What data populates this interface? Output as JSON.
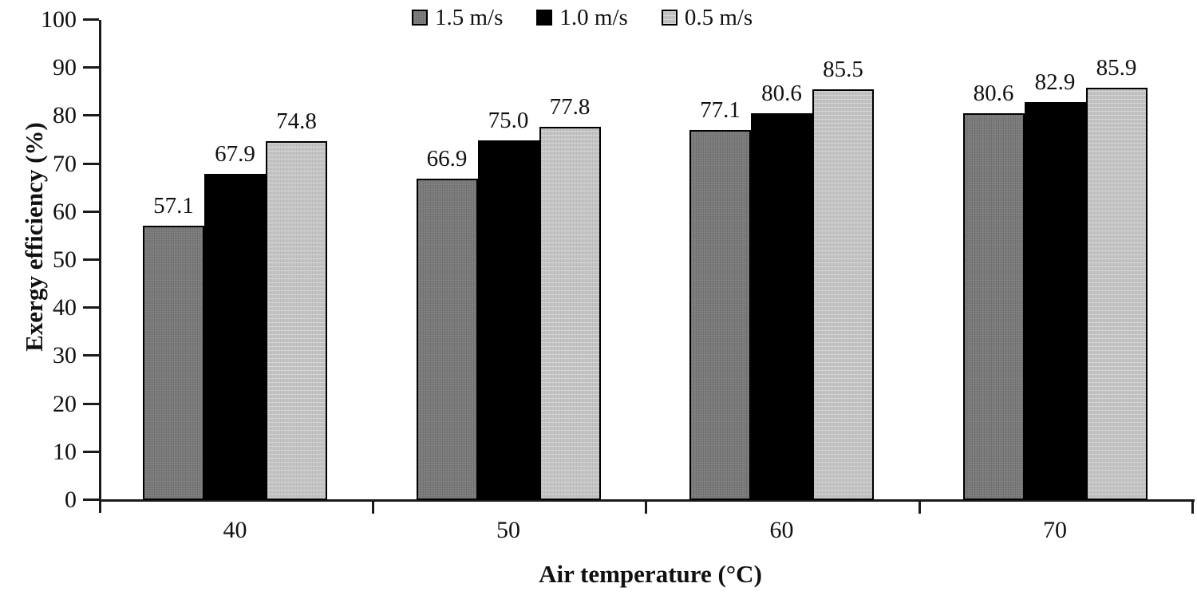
{
  "figure": {
    "background": "#ffffff",
    "axis_color": "#1a1a1a",
    "text_color": "#111111"
  },
  "chart_data": {
    "type": "bar",
    "title": "",
    "xlabel": "Air temperature (°C)",
    "ylabel": "Exergy efficiency (%)",
    "categories": [
      "40",
      "50",
      "60",
      "70"
    ],
    "series": [
      {
        "name": "1.5 m/s",
        "color": "#7b7b7b",
        "values": [
          57.1,
          66.9,
          77.1,
          80.6
        ]
      },
      {
        "name": "1.0 m/s",
        "color": "#000000",
        "values": [
          67.9,
          75.0,
          80.6,
          82.9
        ]
      },
      {
        "name": "0.5 m/s",
        "color": "#c3c3c3",
        "values": [
          74.8,
          77.8,
          85.5,
          85.9
        ]
      }
    ],
    "data_labels": true,
    "data_label_format": "one_decimal",
    "ylim": [
      0,
      100
    ],
    "yticks": [
      0,
      10,
      20,
      30,
      40,
      50,
      60,
      70,
      80,
      90,
      100
    ],
    "grid": false,
    "legend_position": "top-center"
  }
}
